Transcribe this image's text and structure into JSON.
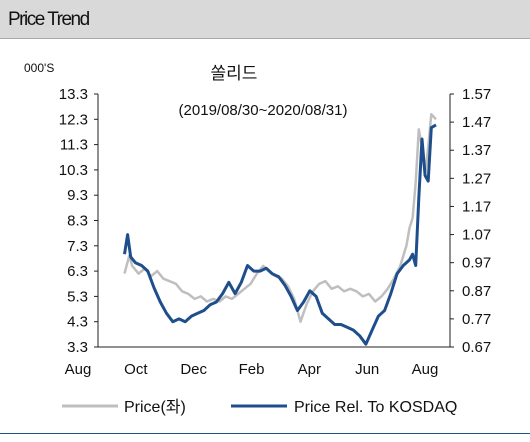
{
  "header": {
    "title": "Price Trend"
  },
  "chart_data": {
    "type": "line",
    "title": "쏠리드",
    "subtitle": "(2019/08/30~2020/08/31)",
    "y_left_unit": "000'S",
    "y_left_ticks": [
      "13.3",
      "12.3",
      "11.3",
      "10.3",
      "9.3",
      "8.3",
      "7.3",
      "6.3",
      "5.3",
      "4.3",
      "3.3"
    ],
    "y_right_ticks": [
      "1.57",
      "1.47",
      "1.37",
      "1.27",
      "1.17",
      "1.07",
      "0.97",
      "0.87",
      "0.77",
      "0.67"
    ],
    "ylim_left": [
      3.3,
      13.3
    ],
    "ylim_right": [
      0.67,
      1.57
    ],
    "x_ticks": [
      "Aug",
      "Oct",
      "Dec",
      "Feb",
      "Apr",
      "Jun",
      "Aug"
    ],
    "grid": false,
    "legend_position": "bottom",
    "series": [
      {
        "name": "Price(좌)",
        "axis": "left",
        "color": "#bfbfbf",
        "points": [
          [
            2019.665,
            6.2
          ],
          [
            2019.68,
            6.9
          ],
          [
            2019.69,
            6.5
          ],
          [
            2019.71,
            6.2
          ],
          [
            2019.73,
            6.4
          ],
          [
            2019.75,
            6.1
          ],
          [
            2019.77,
            6.3
          ],
          [
            2019.79,
            6.0
          ],
          [
            2019.81,
            5.9
          ],
          [
            2019.83,
            5.8
          ],
          [
            2019.85,
            5.5
          ],
          [
            2019.87,
            5.4
          ],
          [
            2019.89,
            5.2
          ],
          [
            2019.91,
            5.3
          ],
          [
            2019.93,
            5.1
          ],
          [
            2019.95,
            5.2
          ],
          [
            2019.97,
            5.1
          ],
          [
            2019.99,
            5.3
          ],
          [
            2020.01,
            5.2
          ],
          [
            2020.03,
            5.4
          ],
          [
            2020.05,
            5.6
          ],
          [
            2020.07,
            5.8
          ],
          [
            2020.09,
            6.2
          ],
          [
            2020.11,
            6.5
          ],
          [
            2020.13,
            6.3
          ],
          [
            2020.15,
            6.1
          ],
          [
            2020.17,
            6.0
          ],
          [
            2020.19,
            5.7
          ],
          [
            2020.21,
            5.2
          ],
          [
            2020.23,
            4.3
          ],
          [
            2020.25,
            5.0
          ],
          [
            2020.27,
            5.5
          ],
          [
            2020.29,
            5.8
          ],
          [
            2020.31,
            5.9
          ],
          [
            2020.33,
            5.6
          ],
          [
            2020.35,
            5.7
          ],
          [
            2020.37,
            5.5
          ],
          [
            2020.39,
            5.6
          ],
          [
            2020.41,
            5.5
          ],
          [
            2020.43,
            5.3
          ],
          [
            2020.45,
            5.4
          ],
          [
            2020.47,
            5.1
          ],
          [
            2020.49,
            5.3
          ],
          [
            2020.51,
            5.6
          ],
          [
            2020.53,
            6.0
          ],
          [
            2020.55,
            6.5
          ],
          [
            2020.57,
            7.3
          ],
          [
            2020.58,
            8.0
          ],
          [
            2020.59,
            8.4
          ],
          [
            2020.6,
            9.8
          ],
          [
            2020.61,
            11.9
          ],
          [
            2020.62,
            11.2
          ],
          [
            2020.63,
            10.1
          ],
          [
            2020.64,
            11.2
          ],
          [
            2020.65,
            12.5
          ],
          [
            2020.665,
            12.3
          ]
        ]
      },
      {
        "name": "Price Rel. To KOSDAQ",
        "axis": "right",
        "color": "#1f4e8c",
        "points": [
          [
            2019.665,
            1.0
          ],
          [
            2019.675,
            1.07
          ],
          [
            2019.685,
            0.99
          ],
          [
            2019.7,
            0.97
          ],
          [
            2019.72,
            0.96
          ],
          [
            2019.74,
            0.94
          ],
          [
            2019.76,
            0.88
          ],
          [
            2019.78,
            0.83
          ],
          [
            2019.8,
            0.79
          ],
          [
            2019.82,
            0.76
          ],
          [
            2019.84,
            0.77
          ],
          [
            2019.86,
            0.76
          ],
          [
            2019.88,
            0.78
          ],
          [
            2019.9,
            0.79
          ],
          [
            2019.92,
            0.8
          ],
          [
            2019.94,
            0.82
          ],
          [
            2019.96,
            0.83
          ],
          [
            2019.98,
            0.86
          ],
          [
            2020.0,
            0.9
          ],
          [
            2020.02,
            0.86
          ],
          [
            2020.04,
            0.9
          ],
          [
            2020.06,
            0.96
          ],
          [
            2020.08,
            0.94
          ],
          [
            2020.1,
            0.94
          ],
          [
            2020.12,
            0.95
          ],
          [
            2020.14,
            0.93
          ],
          [
            2020.16,
            0.92
          ],
          [
            2020.18,
            0.89
          ],
          [
            2020.2,
            0.85
          ],
          [
            2020.22,
            0.8
          ],
          [
            2020.24,
            0.83
          ],
          [
            2020.26,
            0.87
          ],
          [
            2020.28,
            0.85
          ],
          [
            2020.3,
            0.79
          ],
          [
            2020.32,
            0.77
          ],
          [
            2020.34,
            0.75
          ],
          [
            2020.36,
            0.75
          ],
          [
            2020.38,
            0.74
          ],
          [
            2020.4,
            0.73
          ],
          [
            2020.42,
            0.71
          ],
          [
            2020.44,
            0.68
          ],
          [
            2020.46,
            0.73
          ],
          [
            2020.48,
            0.78
          ],
          [
            2020.5,
            0.8
          ],
          [
            2020.52,
            0.86
          ],
          [
            2020.54,
            0.93
          ],
          [
            2020.56,
            0.96
          ],
          [
            2020.58,
            0.98
          ],
          [
            2020.59,
            1.0
          ],
          [
            2020.6,
            0.96
          ],
          [
            2020.61,
            1.2
          ],
          [
            2020.62,
            1.41
          ],
          [
            2020.63,
            1.28
          ],
          [
            2020.64,
            1.26
          ],
          [
            2020.65,
            1.45
          ],
          [
            2020.665,
            1.46
          ]
        ]
      }
    ]
  }
}
